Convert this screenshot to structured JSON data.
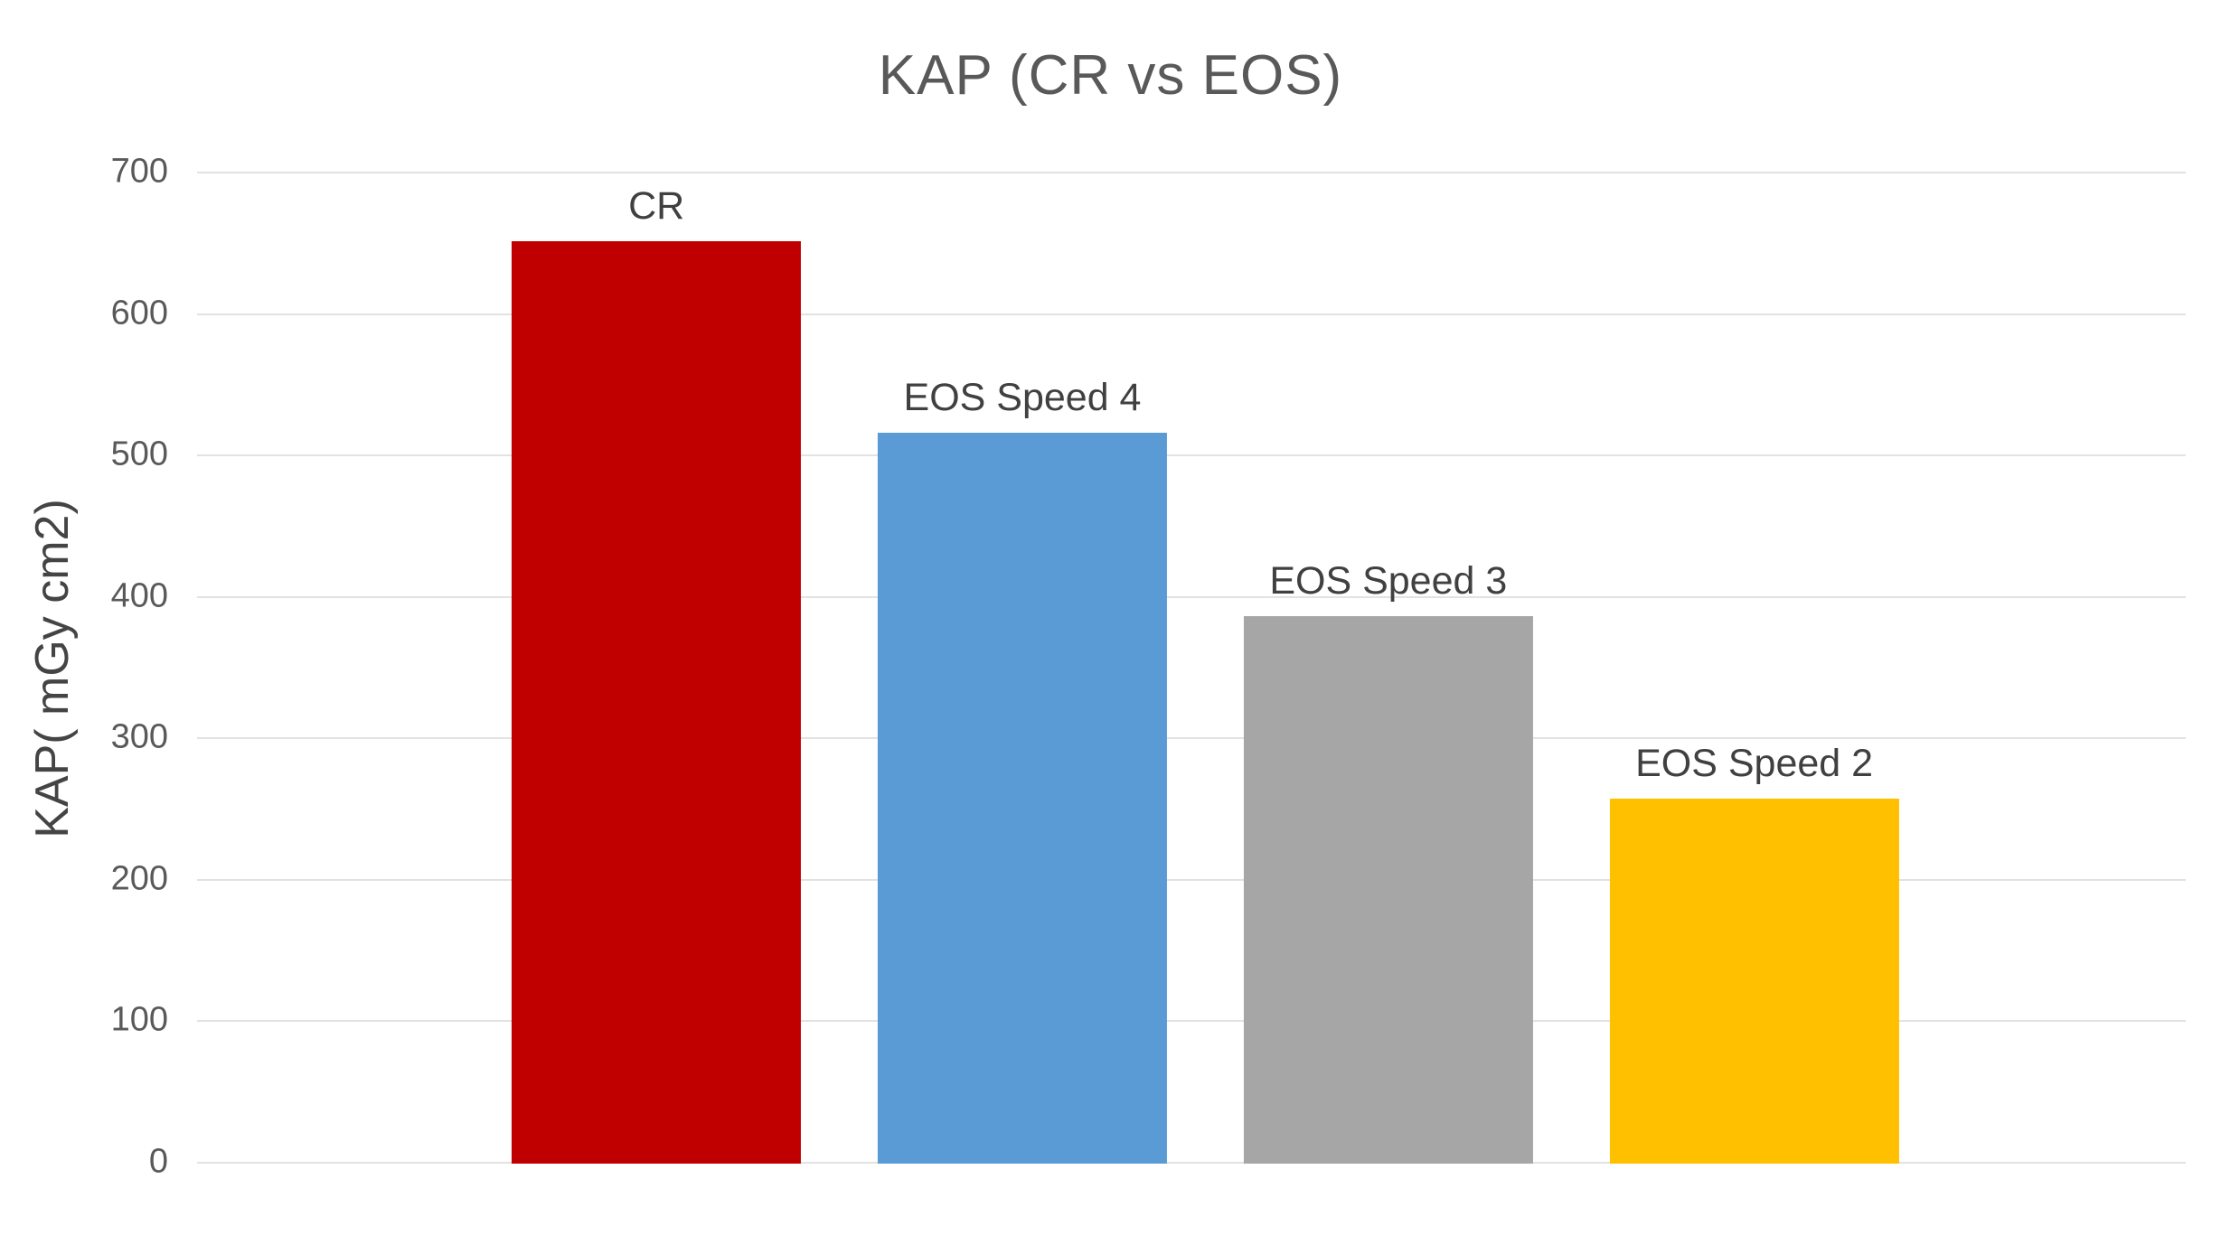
{
  "chart_data": {
    "type": "bar",
    "title": "KAP (CR vs EOS)",
    "ylabel": "KAP( mGy cm2)",
    "xlabel": "",
    "categories": [
      "CR",
      "EOS Speed 4",
      "EOS Speed 3",
      "EOS Speed 2"
    ],
    "values": [
      652,
      517,
      387,
      258
    ],
    "bar_colors": [
      "#C00000",
      "#5B9BD5",
      "#A6A6A6",
      "#FFC000"
    ],
    "ylim": [
      0,
      700
    ],
    "yticks": [
      0,
      100,
      200,
      300,
      400,
      500,
      600,
      700
    ],
    "grid": "horizontal-only",
    "legend": "none",
    "label_position": "above-bar"
  },
  "colors": {
    "background": "#FFFFFF",
    "title_text": "#595959",
    "tick_text": "#595959",
    "category_label_text": "#404040",
    "gridline": "#E2E2E2"
  }
}
